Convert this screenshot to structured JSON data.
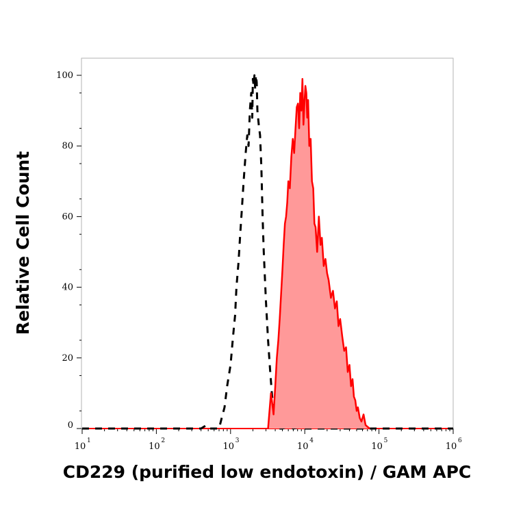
{
  "chart_data": {
    "type": "area",
    "xlabel": "CD229 (purified low endotoxin) / GAM APC",
    "ylabel": "Relative Cell Count",
    "xscale": "log",
    "xlim": [
      10,
      1000000
    ],
    "ylim": [
      0,
      100
    ],
    "x_ticks": [
      {
        "base": "10",
        "exp": "1",
        "value": 10
      },
      {
        "base": "10",
        "exp": "2",
        "value": 100
      },
      {
        "base": "10",
        "exp": "3",
        "value": 1000
      },
      {
        "base": "10",
        "exp": "4",
        "value": 10000
      },
      {
        "base": "10",
        "exp": "5",
        "value": 100000
      },
      {
        "base": "10",
        "exp": "6",
        "value": 1000000
      }
    ],
    "y_ticks": [
      {
        "label": "0",
        "value": 0
      },
      {
        "label": "20",
        "value": 20
      },
      {
        "label": "40",
        "value": 40
      },
      {
        "label": "60",
        "value": 60
      },
      {
        "label": "80",
        "value": 80
      },
      {
        "label": "100",
        "value": 100
      }
    ],
    "series": [
      {
        "style": "dashed",
        "color": "#000000",
        "x": [
          400,
          460,
          500,
          700,
          760,
          830,
          900,
          1000,
          1080,
          1150,
          1200,
          1280,
          1350,
          1420,
          1500,
          1600,
          1680,
          1750,
          1820,
          1900,
          1960,
          2000,
          2050,
          2100,
          2150,
          2200,
          2250,
          2300,
          2400,
          2500,
          2600,
          2700,
          2800,
          3000,
          3200,
          3400,
          3600,
          3800,
          4000,
          4200,
          4500,
          5000,
          6000,
          7000,
          8000,
          9500,
          11000
        ],
        "y": [
          0,
          0.8,
          0,
          0,
          3,
          6,
          12,
          18,
          26,
          32,
          40,
          47,
          55,
          62,
          70,
          78,
          83,
          80,
          90,
          95,
          88,
          99,
          97,
          100,
          96,
          100,
          98,
          90,
          86,
          83,
          74,
          60,
          50,
          36,
          25,
          17,
          10,
          5,
          2,
          1,
          0,
          0,
          0.5,
          0,
          0.3,
          0,
          0
        ]
      },
      {
        "style": "filled",
        "color": "#ff0000",
        "fill": "#ff9999",
        "x": [
          3200,
          3500,
          3700,
          3800,
          4000,
          4200,
          4400,
          4600,
          4800,
          5000,
          5200,
          5400,
          5600,
          5800,
          6000,
          6300,
          6600,
          6900,
          7200,
          7500,
          7800,
          8100,
          8400,
          8700,
          9000,
          9300,
          9600,
          9900,
          10200,
          10500,
          10800,
          11100,
          11500,
          12000,
          12500,
          13000,
          13500,
          14000,
          14700,
          15500,
          16300,
          17000,
          18000,
          19000,
          20000,
          21000,
          22500,
          24000,
          25500,
          27000,
          28500,
          30000,
          32000,
          34000,
          36000,
          38000,
          40000,
          42000,
          44000,
          46000,
          48000,
          50000,
          52000,
          55000,
          58000,
          62000,
          66000,
          70000,
          75000
        ],
        "y": [
          0,
          10,
          6,
          4,
          12,
          20,
          25,
          31,
          38,
          45,
          52,
          58,
          60,
          64,
          70,
          68,
          77,
          82,
          78,
          85,
          91,
          92,
          85,
          95,
          90,
          99,
          86,
          92,
          97,
          95,
          88,
          93,
          80,
          82,
          70,
          68,
          58,
          57,
          50,
          60,
          52,
          54,
          46,
          48,
          44,
          42,
          37,
          39,
          34,
          36,
          29,
          31,
          26,
          22,
          23,
          16,
          18,
          12,
          14,
          9,
          8,
          5,
          6,
          3,
          2,
          4,
          1,
          0.5,
          0
        ]
      }
    ]
  }
}
